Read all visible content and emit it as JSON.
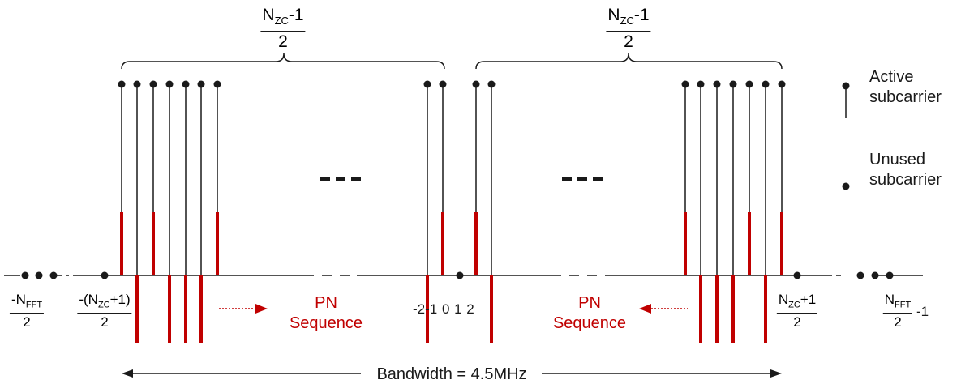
{
  "braces": {
    "left": {
      "num_main": "N",
      "num_sub": "ZC",
      "num_tail": "-1",
      "den": "2"
    },
    "right": {
      "num_main": "N",
      "num_sub": "ZC",
      "num_tail": "-1",
      "den": "2"
    }
  },
  "legend": {
    "active_line1": "Active",
    "active_line2": "subcarrier",
    "unused_line1": "Unused",
    "unused_line2": "subcarrier"
  },
  "axis_labels": {
    "neg_nfft": {
      "num_main": "-N",
      "num_sub": "FFT",
      "num_tail": "",
      "den": "2"
    },
    "neg_nzc": {
      "num_main": "-(N",
      "num_sub": "ZC",
      "num_tail": "+1)",
      "den": "2"
    },
    "center": "-2-1 0  1  2",
    "pos_nzc": {
      "num_main": "N",
      "num_sub": "ZC",
      "num_tail": "+1",
      "den": "2"
    },
    "pos_nfft": {
      "num_main": "N",
      "num_sub": "FFT",
      "num_tail": "",
      "den": "2"
    },
    "pos_nfft_tail": "-1"
  },
  "pn_left": {
    "line1": "PN",
    "line2": "Sequence"
  },
  "pn_right": {
    "line1": "PN",
    "line2": "Sequence"
  },
  "ellipsis": "- - -",
  "bandwidth": "Bandwidth = 4.5MHz",
  "colors": {
    "line": "#1a1a1a",
    "pn": "#c00000"
  }
}
